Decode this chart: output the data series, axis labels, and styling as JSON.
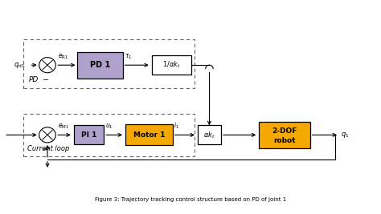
{
  "fig_width": 4.74,
  "fig_height": 2.67,
  "dpi": 100,
  "bg_color": "#ffffff",
  "purple_color": "#b0a0cc",
  "orange_color": "#f5a800",
  "caption": "Figure 3: Trajectory tracking control structure based on PD of joint 1",
  "pd_label": "PD",
  "current_loop_label": "Current loop"
}
